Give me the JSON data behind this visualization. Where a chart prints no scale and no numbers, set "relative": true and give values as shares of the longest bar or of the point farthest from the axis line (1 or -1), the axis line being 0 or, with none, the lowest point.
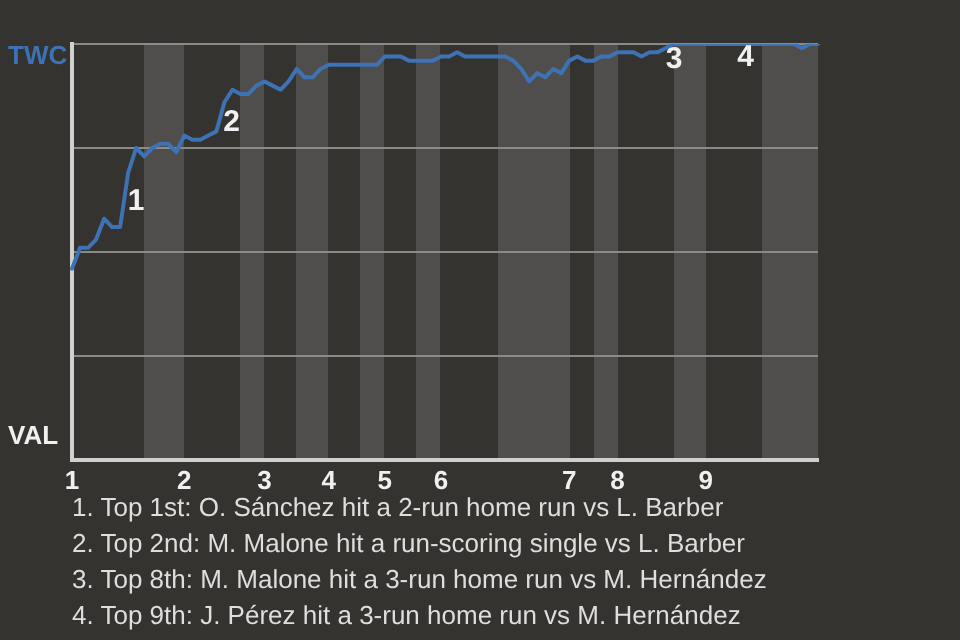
{
  "chart_data": {
    "type": "line",
    "relative": true,
    "categories": [
      "1",
      null,
      null,
      null,
      null,
      null,
      null,
      null,
      null,
      null,
      null,
      null,
      null,
      null,
      "2",
      null,
      null,
      null,
      null,
      null,
      null,
      null,
      null,
      null,
      "3",
      null,
      null,
      null,
      null,
      null,
      null,
      null,
      "4",
      null,
      null,
      null,
      null,
      null,
      null,
      "5",
      null,
      null,
      null,
      null,
      null,
      null,
      "6",
      null,
      null,
      null,
      null,
      null,
      null,
      null,
      null,
      null,
      null,
      null,
      null,
      null,
      null,
      null,
      "7",
      null,
      null,
      null,
      null,
      null,
      "8",
      null,
      null,
      null,
      null,
      null,
      null,
      null,
      null,
      null,
      null,
      "9",
      null,
      null,
      null,
      null,
      null,
      null,
      null,
      null,
      null,
      null,
      null,
      null,
      null,
      null
    ],
    "grid": "y",
    "legend": false,
    "marker": "none",
    "line_style": "solid",
    "series": [
      {
        "color": "#3d72b4",
        "values": [
          0.46,
          0.51,
          0.51,
          0.53,
          0.58,
          0.56,
          0.56,
          0.69,
          0.75,
          0.73,
          0.75,
          0.76,
          0.76,
          0.74,
          0.78,
          0.77,
          0.77,
          0.78,
          0.79,
          0.86,
          0.89,
          0.88,
          0.88,
          0.9,
          0.91,
          0.9,
          0.89,
          0.91,
          0.94,
          0.92,
          0.92,
          0.94,
          0.95,
          0.95,
          0.95,
          0.95,
          0.95,
          0.95,
          0.95,
          0.97,
          0.97,
          0.97,
          0.96,
          0.96,
          0.96,
          0.96,
          0.97,
          0.97,
          0.98,
          0.97,
          0.97,
          0.97,
          0.97,
          0.97,
          0.97,
          0.96,
          0.94,
          0.91,
          0.93,
          0.92,
          0.94,
          0.93,
          0.96,
          0.97,
          0.96,
          0.96,
          0.97,
          0.97,
          0.98,
          0.98,
          0.98,
          0.97,
          0.98,
          0.98,
          0.99,
          1,
          1,
          1,
          1,
          1,
          1,
          1,
          1,
          1,
          1,
          1,
          1,
          1,
          1,
          1,
          1,
          0.99,
          1,
          1
        ]
      }
    ],
    "annotations": [
      "TWC",
      "VAL",
      "1",
      "2",
      "3",
      "4",
      "1. Top 1st: O. Sánchez hit a 2-run home run vs L. Barber",
      "2. Top 2nd: M. Malone hit a run-scoring single vs L. Barber",
      "3. Top 8th: M. Malone hit a 3-run home run vs M. Hernández",
      "4. Top 9th: J. Pérez hit a 3-run home run vs M. Hernández"
    ]
  }
}
